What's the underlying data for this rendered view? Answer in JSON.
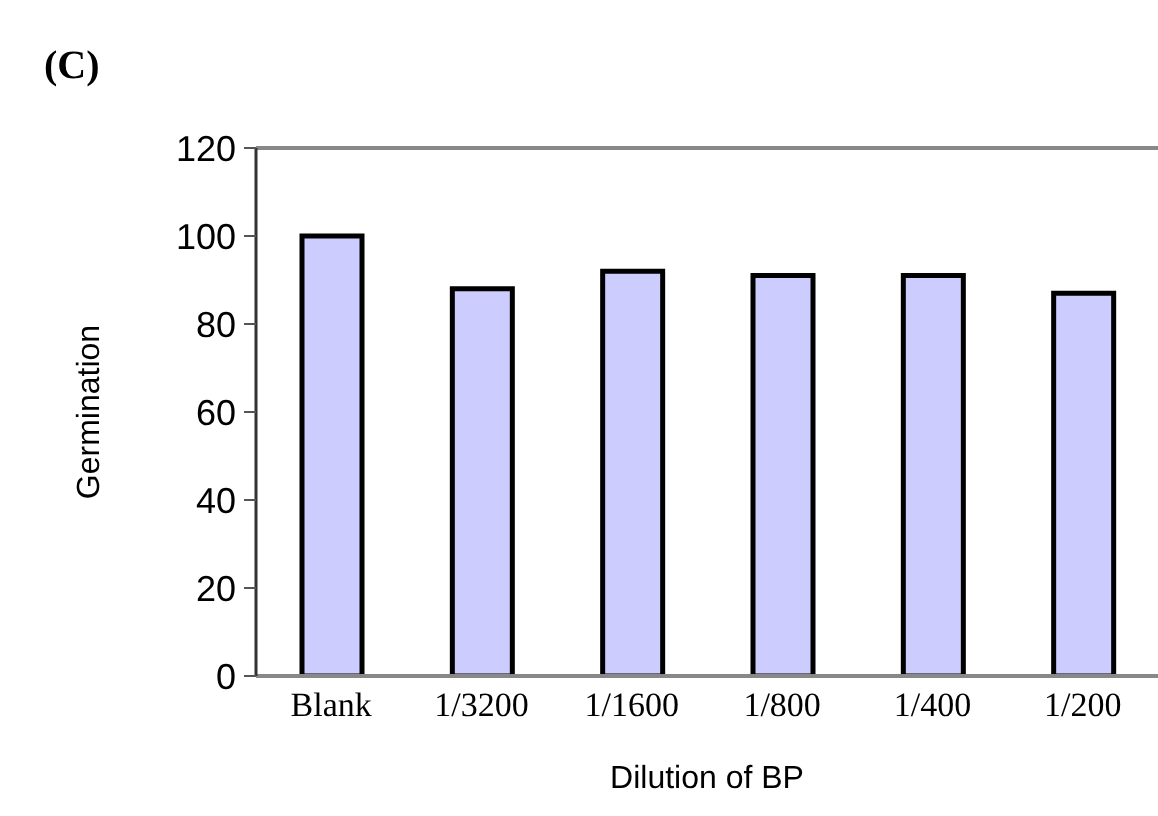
{
  "chart_data": {
    "type": "bar",
    "title": "(C)",
    "xlabel": "Dilution of BP",
    "ylabel": "Germination",
    "categories": [
      "Blank",
      "1/3200",
      "1/1600",
      "1/800",
      "1/400",
      "1/200"
    ],
    "values": [
      100,
      88,
      92,
      91,
      91,
      87
    ],
    "color": "#ccccff",
    "ylim": [
      0,
      120
    ],
    "yticks": [
      0,
      20,
      40,
      60,
      80,
      100,
      120
    ],
    "grid": false
  }
}
